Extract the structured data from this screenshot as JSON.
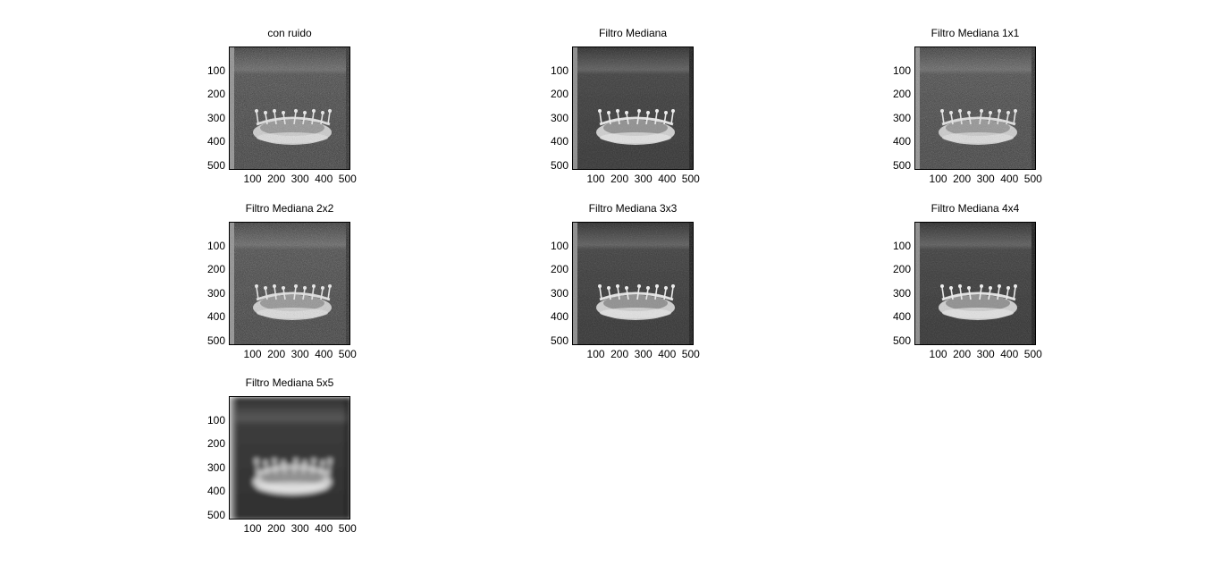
{
  "figure": {
    "subplots": [
      {
        "id": "con-ruido",
        "title": "con ruido",
        "variant": "noisy"
      },
      {
        "id": "filtro-mediana",
        "title": "Filtro Mediana",
        "variant": "filtered"
      },
      {
        "id": "filtro-mediana-1x1",
        "title": "Filtro Mediana 1x1",
        "variant": "noisy"
      },
      {
        "id": "filtro-mediana-2x2",
        "title": "Filtro Mediana 2x2",
        "variant": "noisy"
      },
      {
        "id": "filtro-mediana-3x3",
        "title": "Filtro Mediana 3x3",
        "variant": "filtered"
      },
      {
        "id": "filtro-mediana-4x4",
        "title": "Filtro Mediana 4x4",
        "variant": "filtered"
      },
      {
        "id": "filtro-mediana-5x5",
        "title": "Filtro Mediana 5x5",
        "variant": "blurred"
      }
    ],
    "yticks": [
      "100",
      "200",
      "300",
      "400",
      "500"
    ],
    "xticks": [
      "100",
      "200",
      "300",
      "400",
      "500"
    ],
    "image_extent": [
      0,
      512
    ],
    "colormap": "gray"
  }
}
